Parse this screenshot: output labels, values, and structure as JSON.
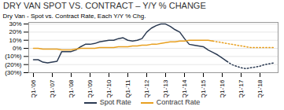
{
  "chart_data": {
    "type": "line",
    "title": "DRY VAN SPOT VS. CONTRACT – Y/Y % CHANGE",
    "y_label": "Dry Van - Spot vs. Contract Rate, Each Y/Y % Chg.",
    "categories": [
      "Q1-'06",
      null,
      null,
      null,
      "Q1-'07",
      null,
      null,
      null,
      "Q1-'08",
      null,
      null,
      null,
      "Q1-'09",
      null,
      null,
      null,
      "Q1-'10",
      null,
      null,
      null,
      "Q1-'11",
      null,
      null,
      null,
      "Q1-'12",
      null,
      null,
      null,
      "Q1-'13",
      null,
      null,
      null,
      "Q1-'14",
      null,
      null,
      null,
      "Q1-'15",
      null,
      null,
      null,
      "Q1-'16",
      null,
      null,
      null,
      "Q1-'17",
      null,
      null,
      null,
      "Q1-'18",
      null,
      null,
      null
    ],
    "series": [
      {
        "name": "Spot Rate",
        "color": "#2b3a52",
        "line_style": "solid",
        "values": [
          -0.14,
          -0.14,
          -0.17,
          -0.18,
          -0.17,
          -0.16,
          -0.04,
          -0.04,
          -0.04,
          -0.02,
          0.02,
          0.05,
          0.05,
          0.06,
          0.08,
          0.09,
          0.1,
          0.1,
          0.12,
          0.13,
          0.1,
          0.09,
          0.1,
          0.12,
          0.2,
          0.25,
          0.28,
          0.3,
          0.3,
          0.27,
          0.23,
          0.2,
          0.12,
          0.05,
          0.04,
          0.03,
          0.02,
          -0.02,
          -0.05,
          -0.08,
          -0.12,
          -0.16,
          null,
          null,
          null,
          null,
          null,
          null,
          null,
          null,
          null,
          null
        ]
      },
      {
        "name": "Spot Rate",
        "color": "#2b3a52",
        "line_style": "dotted",
        "values": [
          null,
          null,
          null,
          null,
          null,
          null,
          null,
          null,
          null,
          null,
          null,
          null,
          null,
          null,
          null,
          null,
          null,
          null,
          null,
          null,
          null,
          null,
          null,
          null,
          null,
          null,
          null,
          null,
          null,
          null,
          null,
          null,
          null,
          null,
          null,
          null,
          null,
          null,
          null,
          null,
          null,
          -0.16,
          -0.2,
          -0.22,
          -0.24,
          -0.25,
          -0.24,
          -0.23,
          -0.22,
          -0.2,
          -0.19,
          -0.18
        ]
      },
      {
        "name": "Contract Rate",
        "color": "#e8a020",
        "line_style": "solid",
        "values": [
          0.0,
          0.0,
          -0.01,
          -0.01,
          -0.01,
          -0.01,
          -0.02,
          -0.02,
          -0.02,
          -0.01,
          0.0,
          0.0,
          0.0,
          0.0,
          0.01,
          0.01,
          0.01,
          0.01,
          0.02,
          0.02,
          0.02,
          0.03,
          0.03,
          0.04,
          0.04,
          0.05,
          0.05,
          0.06,
          0.07,
          0.08,
          0.08,
          0.09,
          0.09,
          0.1,
          0.1,
          0.1,
          0.1,
          0.1,
          0.09,
          null,
          null,
          null,
          null,
          null,
          null,
          null,
          null,
          null,
          null,
          null,
          null,
          null
        ]
      },
      {
        "name": "Contract Rate",
        "color": "#e8a020",
        "line_style": "dotted",
        "values": [
          null,
          null,
          null,
          null,
          null,
          null,
          null,
          null,
          null,
          null,
          null,
          null,
          null,
          null,
          null,
          null,
          null,
          null,
          null,
          null,
          null,
          null,
          null,
          null,
          null,
          null,
          null,
          null,
          null,
          null,
          null,
          null,
          null,
          null,
          null,
          null,
          null,
          null,
          0.09,
          0.08,
          0.07,
          0.06,
          0.05,
          0.04,
          0.03,
          0.02,
          0.01,
          0.01,
          0.01,
          0.01,
          0.01,
          0.01
        ]
      }
    ],
    "ylim": [
      -0.3,
      0.32
    ],
    "yticks": [
      {
        "value": -0.3,
        "label": "(30%)"
      },
      {
        "value": -0.2,
        "label": "(20%)"
      },
      {
        "value": -0.1,
        "label": "(10%)"
      },
      {
        "value": 0.0,
        "label": "0%"
      },
      {
        "value": 0.1,
        "label": "10%"
      },
      {
        "value": 0.2,
        "label": "20%"
      },
      {
        "value": 0.3,
        "label": "30%"
      }
    ],
    "grid": true,
    "legend": "bottom"
  }
}
